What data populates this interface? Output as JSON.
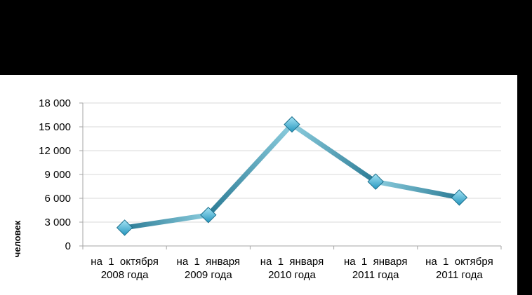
{
  "chart_data": {
    "type": "line",
    "title": "",
    "xlabel": "",
    "ylabel": "человек",
    "categories": [
      [
        "на  1  октября",
        "2008 года"
      ],
      [
        "на  1  января",
        "2009 года"
      ],
      [
        "на  1  января",
        "2010 года"
      ],
      [
        "на  1  января",
        "2011 года"
      ],
      [
        "на  1  октября",
        "2011 года"
      ]
    ],
    "series": [
      {
        "values": [
          2300,
          3900,
          15300,
          8100,
          6100
        ]
      }
    ],
    "ylim": [
      0,
      18000
    ],
    "yticks": [
      0,
      3000,
      6000,
      9000,
      12000,
      15000,
      18000
    ],
    "ytick_labels": [
      "0",
      "3 000",
      "6 000",
      "9 000",
      "12 000",
      "15 000",
      "18 000"
    ],
    "grid": true,
    "legend": "none",
    "colors": {
      "line_light": "#8ccdde",
      "line_dark": "#2a7a94",
      "marker_light": "#a6e4f5",
      "marker_dark": "#2596be",
      "marker_stroke": "#1b6f8c",
      "grid": "#d9d9d9",
      "axis": "#a6a6a6"
    }
  }
}
